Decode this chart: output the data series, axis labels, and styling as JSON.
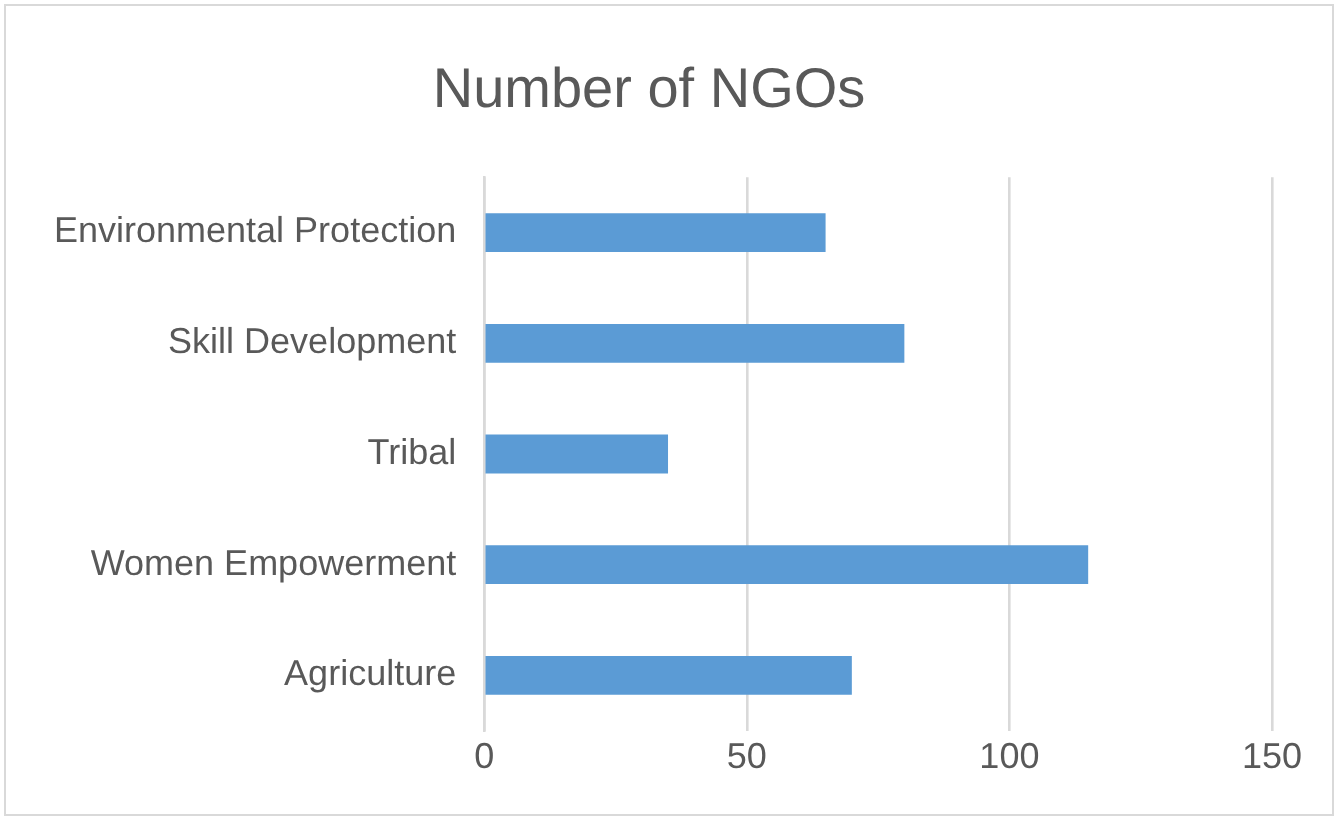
{
  "chart_data": {
    "type": "bar",
    "title": "Number of NGOs",
    "orientation": "horizontal",
    "categories": [
      "Environmental Protection",
      "Skill Development",
      "Tribal",
      "Women Empowerment",
      "Agriculture"
    ],
    "values": [
      65,
      80,
      35,
      115,
      70
    ],
    "color": "#5b9bd5",
    "xlim": [
      0,
      150
    ],
    "xticks": [
      0,
      50,
      100,
      150
    ],
    "grid": "x",
    "legend": false
  }
}
